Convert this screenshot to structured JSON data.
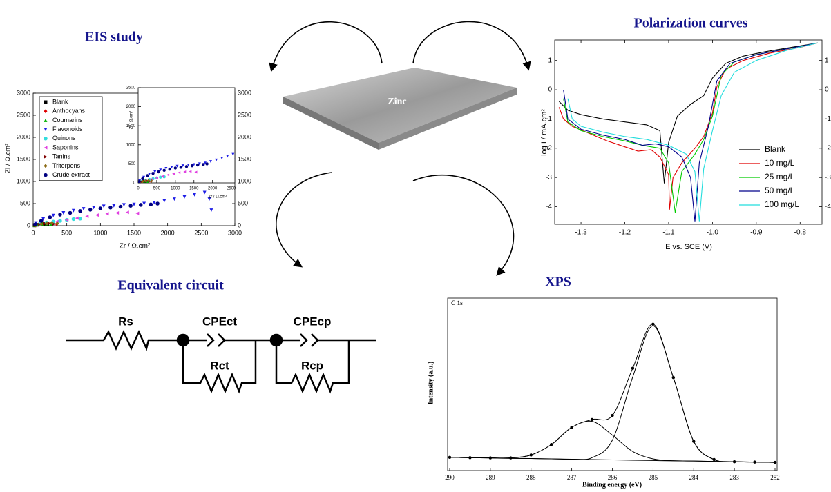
{
  "chart_data": [
    {
      "type": "scatter",
      "title": "EIS study",
      "xlabel": "Zr / Ω.cm²",
      "ylabel": "-Zi / Ω.cm²",
      "xlim": [
        0,
        3000
      ],
      "ylim": [
        0,
        3000
      ],
      "xticks": [
        0,
        500,
        1000,
        1500,
        2000,
        2500,
        3000
      ],
      "yticks": [
        0,
        500,
        1000,
        1500,
        2000,
        2500,
        3000
      ],
      "legend": "upper left",
      "series": [
        {
          "name": "Blank",
          "color": "#000000",
          "marker": "square",
          "x": [
            20,
            60,
            110,
            160,
            210
          ],
          "values": [
            5,
            20,
            35,
            40,
            30
          ]
        },
        {
          "name": "Anthocyans",
          "color": "#e00000",
          "marker": "diamond",
          "x": [
            30,
            90,
            150,
            220,
            290,
            350
          ],
          "values": [
            10,
            30,
            50,
            60,
            55,
            40
          ]
        },
        {
          "name": "Coumarins",
          "color": "#00b000",
          "marker": "triangle-up",
          "x": [
            20,
            80,
            140,
            200,
            260
          ],
          "values": [
            8,
            25,
            40,
            45,
            35
          ]
        },
        {
          "name": "Flavonoids",
          "color": "#1e1ee6",
          "marker": "triangle-down",
          "x": [
            40,
            150,
            300,
            450,
            600,
            750,
            900,
            1050,
            1200,
            1350,
            1500,
            1650,
            1800,
            1950,
            2100,
            2250,
            2400,
            2550,
            2620,
            2650
          ],
          "values": [
            60,
            150,
            230,
            290,
            340,
            380,
            410,
            440,
            450,
            470,
            480,
            500,
            520,
            560,
            600,
            650,
            700,
            750,
            600,
            350
          ]
        },
        {
          "name": "Quinons",
          "color": "#33dddd",
          "marker": "circle",
          "x": [
            100,
            200,
            300,
            400,
            500,
            600,
            700
          ],
          "values": [
            40,
            70,
            90,
            110,
            130,
            150,
            160
          ]
        },
        {
          "name": "Saponins",
          "color": "#e040e0",
          "marker": "triangle-left",
          "x": [
            200,
            350,
            500,
            650,
            800,
            950,
            1100,
            1250,
            1400,
            1550
          ],
          "values": [
            50,
            90,
            130,
            170,
            210,
            240,
            270,
            290,
            300,
            280
          ]
        },
        {
          "name": "Tanins",
          "color": "#800000",
          "marker": "triangle-right",
          "x": [
            30,
            100,
            170,
            240,
            310
          ],
          "values": [
            10,
            30,
            45,
            50,
            40
          ]
        },
        {
          "name": "Triterpens",
          "color": "#8b6914",
          "marker": "diamond",
          "x": [
            40,
            120,
            200,
            280,
            360
          ],
          "values": [
            10,
            35,
            55,
            65,
            50
          ]
        },
        {
          "name": "Crude extract",
          "color": "#000080",
          "marker": "circle",
          "x": [
            30,
            120,
            250,
            400,
            550,
            700,
            850,
            1000,
            1150,
            1300,
            1450,
            1600,
            1750,
            1850
          ],
          "values": [
            30,
            110,
            190,
            250,
            290,
            330,
            360,
            390,
            410,
            430,
            450,
            470,
            480,
            500
          ]
        }
      ],
      "inset": {
        "xlabel": "Zr / Ω.cm²",
        "ylabel": "-Zi / Ω.cm²",
        "xlim": [
          0,
          2600
        ],
        "ylim": [
          0,
          2500
        ],
        "xticks": [
          0,
          500,
          1000,
          1500,
          2000,
          2500
        ],
        "yticks": [
          0,
          500,
          1000,
          1500,
          2000,
          2500
        ]
      }
    },
    {
      "type": "line",
      "title": "Polarization curves",
      "xlabel": "E vs. SCE (V)",
      "ylabel": "log I / mA.cm²",
      "xlim": [
        -1.36,
        -0.75
      ],
      "ylim": [
        -4.6,
        1.7
      ],
      "xticks": [
        -1.3,
        -1.2,
        -1.1,
        {
          "value": -1.0,
          "label": "-1.0"
        },
        -0.9,
        -0.8
      ],
      "yticks": [
        -4,
        -3,
        -2,
        -1,
        0,
        1
      ],
      "legend": "lower right",
      "series": [
        {
          "name": "Blank",
          "color": "#000000",
          "x": [
            -1.35,
            -1.33,
            -1.3,
            -1.25,
            -1.2,
            -1.15,
            -1.12,
            -1.11,
            -1.1,
            -1.08,
            -1.05,
            -1.02,
            -1.0,
            -0.97,
            -0.93,
            -0.88,
            -0.82,
            -0.76
          ],
          "values": [
            -0.4,
            -0.7,
            -0.85,
            -1.0,
            -1.1,
            -1.2,
            -1.4,
            -3.2,
            -1.8,
            -0.9,
            -0.5,
            -0.2,
            0.4,
            0.9,
            1.15,
            1.3,
            1.45,
            1.6
          ]
        },
        {
          "name": "10 mg/L",
          "color": "#e00000",
          "x": [
            -1.35,
            -1.34,
            -1.32,
            -1.28,
            -1.24,
            -1.2,
            -1.17,
            -1.14,
            -1.12,
            -1.1,
            -1.098,
            -1.09,
            -1.07,
            -1.04,
            -1.02,
            -1.0,
            -0.99,
            -0.97,
            -0.93,
            -0.87,
            -0.8,
            -0.76
          ],
          "values": [
            -0.6,
            -1.0,
            -1.25,
            -1.5,
            -1.75,
            -1.95,
            -2.1,
            -2.05,
            -2.3,
            -2.9,
            -4.1,
            -3.0,
            -2.5,
            -2.0,
            -1.6,
            -0.8,
            0.1,
            0.7,
            1.0,
            1.25,
            1.45,
            1.6
          ]
        },
        {
          "name": "25 mg/L",
          "color": "#00cc00",
          "x": [
            -1.34,
            -1.33,
            -1.3,
            -1.25,
            -1.2,
            -1.16,
            -1.12,
            -1.1,
            -1.085,
            -1.07,
            -1.04,
            -1.02,
            -1.0,
            -0.98,
            -0.95,
            -0.9,
            -0.83,
            -0.76
          ],
          "values": [
            -0.3,
            -1.1,
            -1.4,
            -1.6,
            -1.75,
            -1.9,
            -2.0,
            -2.5,
            -4.2,
            -2.8,
            -2.2,
            -1.7,
            -0.9,
            0.5,
            0.95,
            1.2,
            1.4,
            1.6
          ]
        },
        {
          "name": "50 mg/L",
          "color": "#00008b",
          "x": [
            -1.34,
            -1.33,
            -1.3,
            -1.25,
            -1.2,
            -1.16,
            -1.13,
            -1.1,
            -1.07,
            -1.05,
            -1.04,
            -1.03,
            -1.01,
            -0.99,
            -0.96,
            -0.9,
            -0.83,
            -0.76
          ],
          "values": [
            0.0,
            -1.0,
            -1.35,
            -1.55,
            -1.7,
            -1.9,
            -1.85,
            -1.95,
            -2.3,
            -3.0,
            -4.5,
            -2.5,
            -1.3,
            0.3,
            0.9,
            1.2,
            1.4,
            1.6
          ]
        },
        {
          "name": "100 mg/L",
          "color": "#22dddd",
          "x": [
            -1.33,
            -1.32,
            -1.3,
            -1.25,
            -1.2,
            -1.15,
            -1.1,
            -1.06,
            -1.04,
            -1.03,
            -1.02,
            -1.0,
            -0.98,
            -0.95,
            -0.9,
            -0.83,
            -0.76
          ],
          "values": [
            -0.3,
            -1.0,
            -1.25,
            -1.45,
            -1.6,
            -1.7,
            -1.9,
            -2.2,
            -2.8,
            -4.5,
            -2.7,
            -1.4,
            -0.2,
            0.6,
            1.0,
            1.35,
            1.6
          ]
        }
      ]
    },
    {
      "type": "line",
      "title": "XPS",
      "panel_label": "C 1s",
      "xlabel": "Binding energy (eV)",
      "ylabel": "Intensity (a.u.)",
      "xlim": [
        290,
        282
      ],
      "ylim": [
        0,
        1
      ],
      "xticks": [
        290,
        289,
        288,
        287,
        286,
        285,
        284,
        283,
        282
      ],
      "series": [
        {
          "color": "#000000",
          "marker": "circle",
          "x": [
            290,
            289.5,
            289,
            288.5,
            288,
            287.5,
            287,
            286.5,
            286,
            285.5,
            285,
            284.5,
            284,
            283.5,
            283,
            282.5,
            282
          ],
          "values": [
            0.05,
            0.048,
            0.047,
            0.047,
            0.064,
            0.126,
            0.228,
            0.275,
            0.299,
            0.579,
            0.841,
            0.524,
            0.145,
            0.037,
            0.024,
            0.022,
            0.02
          ]
        },
        {
          "color": "#000000",
          "x": [
            290,
            289.5,
            289,
            288.5,
            288,
            287.5,
            287,
            286.5,
            286,
            285.5,
            285,
            284.5,
            284,
            283.5,
            283,
            282.5,
            282
          ],
          "values": [
            0.05,
            0.048,
            0.046,
            0.044,
            0.043,
            0.041,
            0.039,
            0.048,
            0.152,
            0.527,
            0.831,
            0.523,
            0.145,
            0.037,
            0.024,
            0.022,
            0.02
          ]
        },
        {
          "color": "#000000",
          "x": [
            290,
            289.5,
            289,
            288.5,
            288,
            287.5,
            287,
            286.5,
            286,
            285.5,
            285,
            284.5,
            284,
            283.5,
            283,
            282.5,
            282
          ],
          "values": [
            0.05,
            0.048,
            0.047,
            0.047,
            0.064,
            0.126,
            0.228,
            0.264,
            0.182,
            0.085,
            0.041,
            0.03,
            0.028,
            0.026,
            0.024,
            0.022,
            0.02
          ]
        },
        {
          "color": "#000000",
          "x": [
            290,
            289.5,
            289,
            288.5,
            288,
            287.5,
            287,
            286.5,
            286,
            285.5,
            285,
            284.5,
            284,
            283.5,
            283,
            282.5,
            282
          ],
          "values": [
            0.05,
            0.048,
            0.046,
            0.044,
            0.043,
            0.041,
            0.039,
            0.037,
            0.035,
            0.033,
            0.031,
            0.029,
            0.028,
            0.026,
            0.024,
            0.022,
            0.02
          ]
        }
      ]
    }
  ],
  "center": {
    "label": "Zinc"
  },
  "circuit": {
    "title": "Equivalent circuit",
    "rs": "Rs",
    "cpe_ct": "CPEct",
    "rct": "Rct",
    "cpe_cp": "CPEcp",
    "rcp": "Rcp"
  }
}
